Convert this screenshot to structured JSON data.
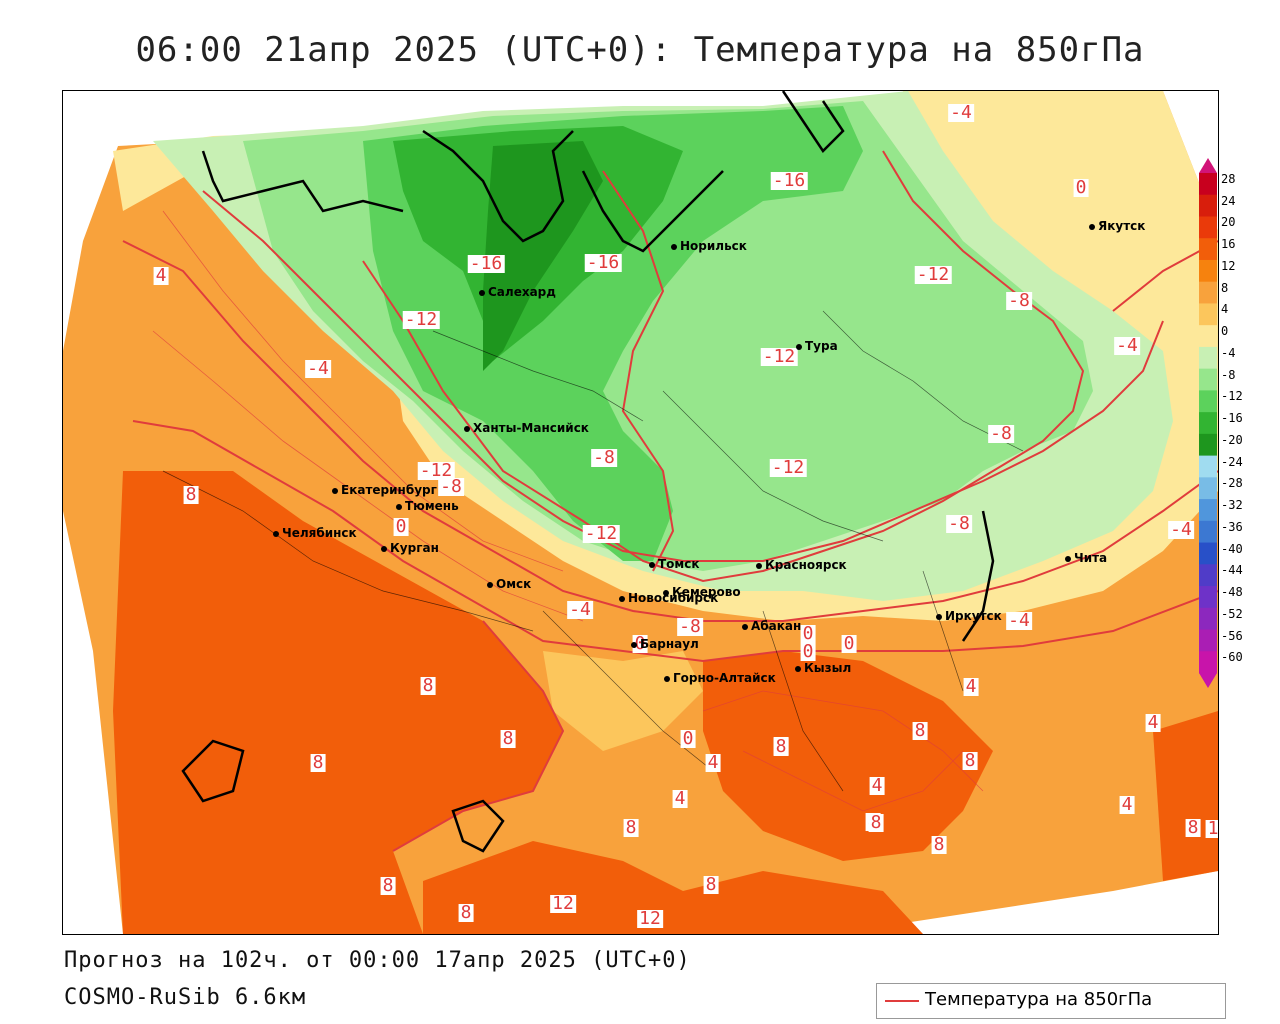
{
  "title": "06:00 21апр 2025 (UTC+0): Температура на 850гПа",
  "footer": {
    "forecast": "Прогноз на 102ч. от 00:00 17апр 2025 (UTC+0)",
    "model": "COSMO-RuSib 6.6км"
  },
  "legend": {
    "label": "Температура на 850гПа",
    "line_color": "#e03c3c"
  },
  "colorbar": {
    "ticks": [
      "28",
      "24",
      "20",
      "16",
      "12",
      "8",
      "4",
      "0",
      "-4",
      "-8",
      "-12",
      "-16",
      "-20",
      "-24",
      "-28",
      "-32",
      "-36",
      "-40",
      "-44",
      "-48",
      "-52",
      "-56",
      "-60"
    ],
    "colors": [
      "#c8001e",
      "#d81e0c",
      "#ea3a0a",
      "#f25e0a",
      "#f6820e",
      "#f8a23c",
      "#fcc65c",
      "#fde89a",
      "#c8f0b4",
      "#96e68c",
      "#5cd25c",
      "#32b432",
      "#1e961e",
      "#a0dcf0",
      "#78bce6",
      "#5096dc",
      "#3c78d2",
      "#2850c8",
      "#503cc8",
      "#6e32c8",
      "#8c28be",
      "#aa1eb4",
      "#c814aa"
    ],
    "top_color": "#d21478"
  },
  "cities": [
    {
      "name": "Якутск"
    },
    {
      "name": "Норильск"
    },
    {
      "name": "Салехард"
    },
    {
      "name": "Тура"
    },
    {
      "name": "Ханты-Мансийск"
    },
    {
      "name": "Екатеринбург"
    },
    {
      "name": "Тюмень"
    },
    {
      "name": "Челябинск"
    },
    {
      "name": "Курган"
    },
    {
      "name": "Омск"
    },
    {
      "name": "Новосибирск"
    },
    {
      "name": "Томск"
    },
    {
      "name": "Кемерово"
    },
    {
      "name": "Красноярск"
    },
    {
      "name": "Барнаул"
    },
    {
      "name": "Абакан"
    },
    {
      "name": "Иркутск"
    },
    {
      "name": "Чита"
    },
    {
      "name": "Горно-Алтайск"
    },
    {
      "name": "Кызыл"
    }
  ],
  "contour_labels": [
    "-4",
    "0",
    "4",
    "-16",
    "-16",
    "-16",
    "-12",
    "-12",
    "-12",
    "-8",
    "-4",
    "-4",
    "-4",
    "8",
    "-12",
    "-8",
    "0",
    "-12",
    "-8",
    "-8",
    "-12",
    "-8",
    "-4",
    "-4",
    "0",
    "-8",
    "0",
    "0",
    "8",
    "8",
    "4",
    "8",
    "8",
    "0",
    "4",
    "8",
    "4",
    "8",
    "8",
    "8",
    "8",
    "4",
    "4",
    "8",
    "8",
    "4",
    "8",
    "12",
    "12",
    "8",
    "8",
    "8",
    "0",
    "1"
  ]
}
